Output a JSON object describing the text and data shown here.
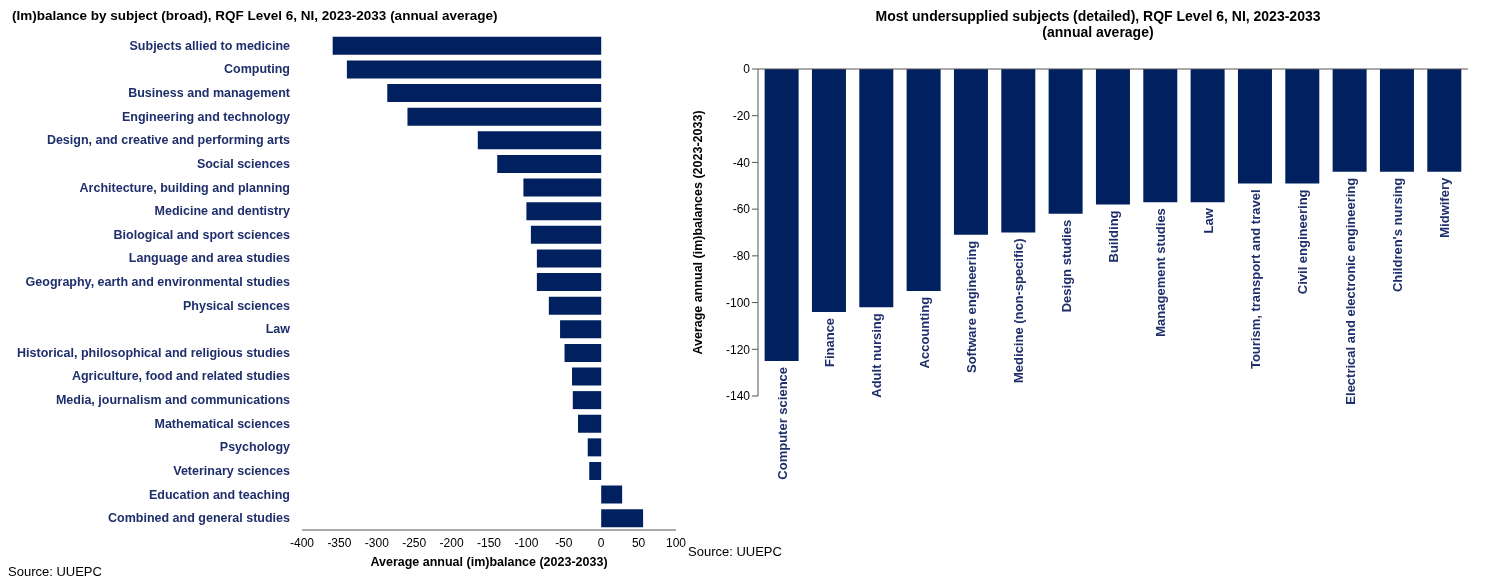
{
  "chart_data": [
    {
      "type": "bar",
      "orientation": "horizontal",
      "title": "(Im)balance by subject (broad), RQF Level 6, NI, 2023-2033  (annual average)",
      "xlabel": "Average annual (im)balance (2023-2033)",
      "categories": [
        "Subjects allied to medicine",
        "Computing",
        "Business and management",
        "Engineering and technology",
        "Design, and creative and performing arts",
        "Social sciences",
        "Architecture, building and planning",
        "Medicine and dentistry",
        "Biological and sport sciences",
        "Language and area studies",
        "Geography, earth and environmental studies",
        "Physical sciences",
        "Law",
        "Historical, philosophical and religious studies",
        "Agriculture, food and related studies",
        "Media, journalism and communications",
        "Mathematical sciences",
        "Psychology",
        "Veterinary sciences",
        "Education and teaching",
        "Combined and general studies"
      ],
      "values": [
        -359,
        -340,
        -286,
        -259,
        -165,
        -139,
        -104,
        -100,
        -94,
        -86,
        -86,
        -70,
        -55,
        -49,
        -39,
        -38,
        -31,
        -18,
        -16,
        28,
        56
      ],
      "color": "#002060",
      "xlim": [
        -400,
        100
      ],
      "xticks": [
        -400,
        -350,
        -300,
        -250,
        -200,
        -150,
        -100,
        -50,
        0,
        50,
        100
      ],
      "annotations": [
        "Source: UUEPC"
      ]
    },
    {
      "type": "bar",
      "title": "Most undersupplied subjects (detailed), RQF Level 6, NI, 2023-2033 (annual average)",
      "ylabel": "Average annual (im)balances (2023-2033)",
      "categories": [
        "Computer science",
        "Finance",
        "Adult nursing",
        "Accounting",
        "Software engineering",
        "Medicine (non-specific)",
        "Design studies",
        "Building",
        "Management studies",
        "Law",
        "Tourism, transport and travel",
        "Civil engineering",
        "Electrical and electronic engineering",
        "Children's nursing",
        "Midwifery"
      ],
      "values": [
        -125,
        -104,
        -102,
        -95,
        -71,
        -70,
        -62,
        -58,
        -57,
        -57,
        -49,
        -49,
        -44,
        -44,
        -44
      ],
      "color": "#002060",
      "ylim": [
        -140,
        0
      ],
      "yticks": [
        -140,
        -120,
        -100,
        -80,
        -60,
        -40,
        -20,
        0
      ],
      "annotations": [
        "Source: UUEPC"
      ]
    }
  ]
}
